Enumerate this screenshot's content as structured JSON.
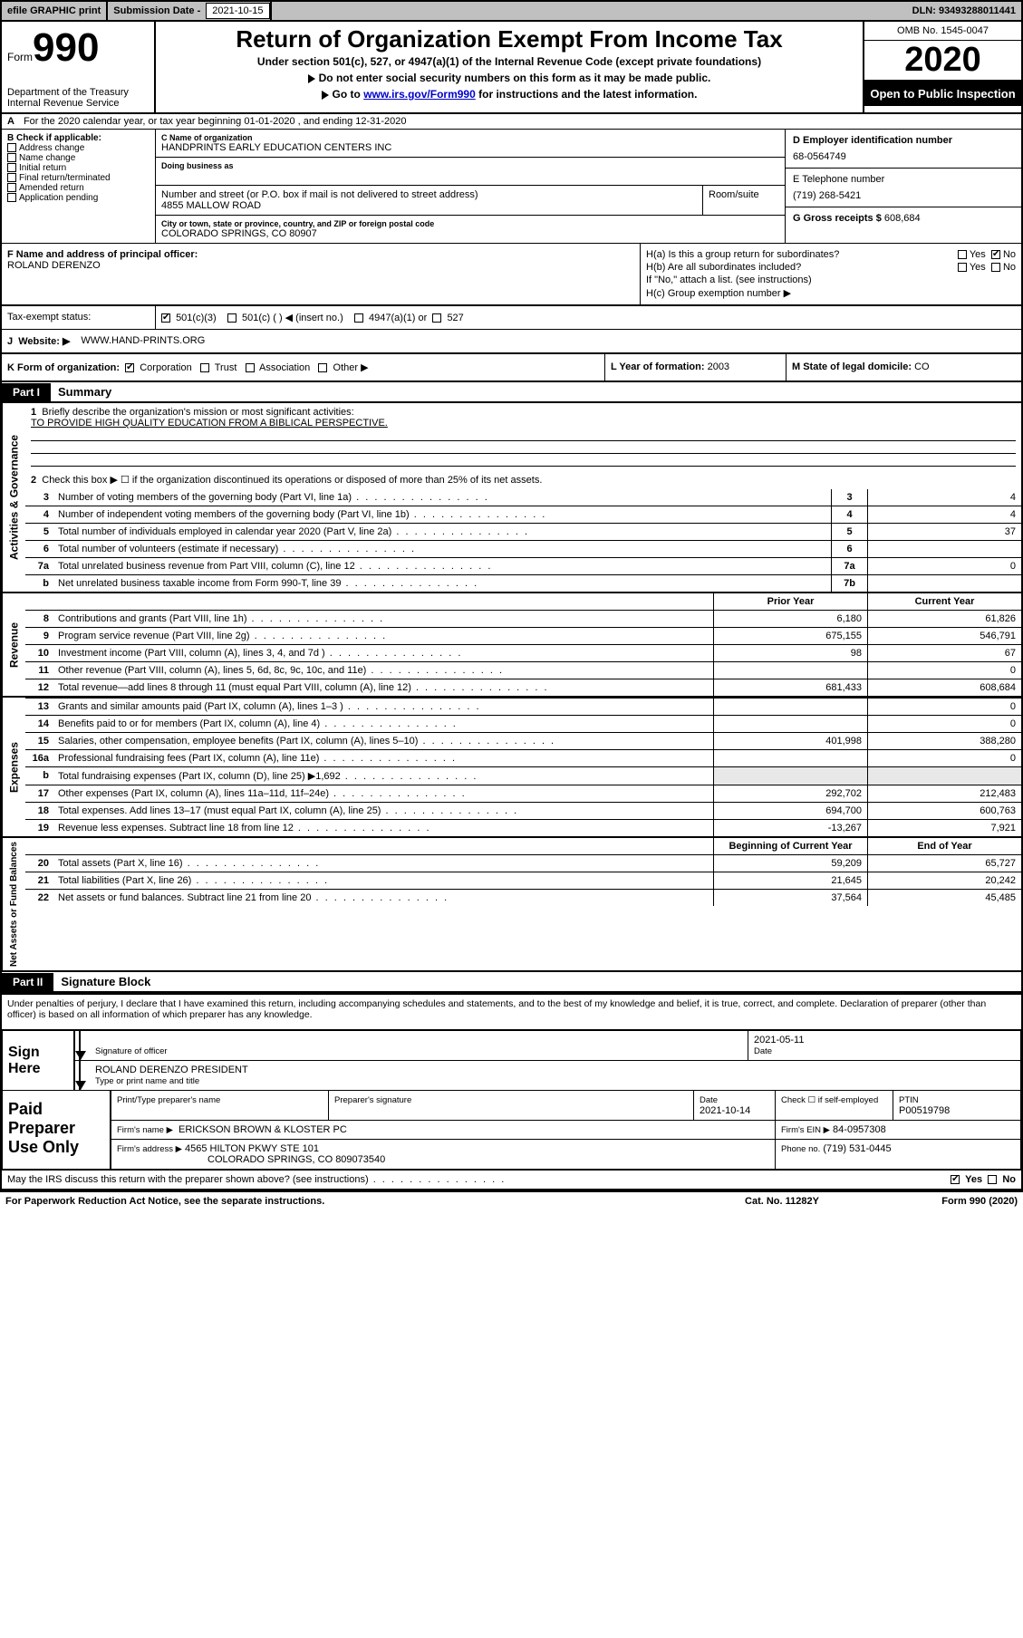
{
  "topbar": {
    "efile": "efile GRAPHIC print",
    "sub_label": "Submission Date -",
    "sub_date": "2021-10-15",
    "dln": "DLN: 93493288011441"
  },
  "header": {
    "form_prefix": "Form",
    "form_number": "990",
    "title": "Return of Organization Exempt From Income Tax",
    "sub1": "Under section 501(c), 527, or 4947(a)(1) of the Internal Revenue Code (except private foundations)",
    "sub2": "Do not enter social security numbers on this form as it may be made public.",
    "sub3_pre": "Go to ",
    "sub3_link": "www.irs.gov/Form990",
    "sub3_post": " for instructions and the latest information.",
    "dept1": "Department of the Treasury",
    "dept2": "Internal Revenue Service",
    "omb": "OMB No. 1545-0047",
    "year": "2020",
    "open_to": "Open to Public Inspection"
  },
  "line_a": "For the 2020 calendar year, or tax year beginning 01-01-2020   , and ending 12-31-2020",
  "box_b": {
    "label": "B Check if applicable:",
    "items": [
      "Address change",
      "Name change",
      "Initial return",
      "Final return/terminated",
      "Amended return",
      "Application pending"
    ]
  },
  "box_c": {
    "name_hint": "C Name of organization",
    "name": "HANDPRINTS EARLY EDUCATION CENTERS INC",
    "dba_hint": "Doing business as",
    "addr_hint": "Number and street (or P.O. box if mail is not delivered to street address)",
    "room_hint": "Room/suite",
    "address": "4855 MALLOW ROAD",
    "city_hint": "City or town, state or province, country, and ZIP or foreign postal code",
    "city": "COLORADO SPRINGS, CO  80907"
  },
  "box_d": {
    "label": "D Employer identification number",
    "value": "68-0564749"
  },
  "box_e": {
    "label": "E Telephone number",
    "value": "(719) 268-5421"
  },
  "box_g": {
    "label": "G Gross receipts $",
    "value": "608,684"
  },
  "box_f": {
    "label": "F  Name and address of principal officer:",
    "name": "ROLAND DERENZO"
  },
  "box_h": {
    "ha": "H(a)  Is this a group return for subordinates?",
    "hb": "H(b)  Are all subordinates included?",
    "hb_note": "If \"No,\" attach a list. (see instructions)",
    "hc": "H(c)  Group exemption number ▶",
    "yes": "Yes",
    "no": "No"
  },
  "tax_status": {
    "label": "Tax-exempt status:",
    "o1": "501(c)(3)",
    "o2": "501(c) (  ) ◀ (insert no.)",
    "o3": "4947(a)(1) or",
    "o4": "527"
  },
  "row_j": {
    "label": "J",
    "website_label": "Website: ▶",
    "website": "WWW.HAND-PRINTS.ORG"
  },
  "row_k": {
    "label": "K Form of organization:",
    "opts": [
      "Corporation",
      "Trust",
      "Association",
      "Other ▶"
    ],
    "l_label": "L Year of formation:",
    "l_val": "2003",
    "m_label": "M State of legal domicile:",
    "m_val": "CO"
  },
  "part1": {
    "tag": "Part I",
    "title": "Summary"
  },
  "gov": {
    "vlabel": "Activities & Governance",
    "q1_num": "1",
    "q1": "Briefly describe the organization's mission or most significant activities:",
    "q1_text": "TO PROVIDE HIGH QUALITY EDUCATION FROM A BIBLICAL PERSPECTIVE.",
    "q2_num": "2",
    "q2": "Check this box ▶ ☐  if the organization discontinued its operations or disposed of more than 25% of its net assets.",
    "lines": [
      {
        "n": "3",
        "t": "Number of voting members of the governing body (Part VI, line 1a)",
        "box": "3",
        "v": "4"
      },
      {
        "n": "4",
        "t": "Number of independent voting members of the governing body (Part VI, line 1b)",
        "box": "4",
        "v": "4"
      },
      {
        "n": "5",
        "t": "Total number of individuals employed in calendar year 2020 (Part V, line 2a)",
        "box": "5",
        "v": "37"
      },
      {
        "n": "6",
        "t": "Total number of volunteers (estimate if necessary)",
        "box": "6",
        "v": ""
      },
      {
        "n": "7a",
        "t": "Total unrelated business revenue from Part VIII, column (C), line 12",
        "box": "7a",
        "v": "0"
      },
      {
        "n": "b",
        "t": "Net unrelated business taxable income from Form 990-T, line 39",
        "box": "7b",
        "v": ""
      }
    ]
  },
  "rev": {
    "vlabel": "Revenue",
    "hdr_prior": "Prior Year",
    "hdr_curr": "Current Year",
    "lines": [
      {
        "n": "8",
        "t": "Contributions and grants (Part VIII, line 1h)",
        "p": "6,180",
        "c": "61,826"
      },
      {
        "n": "9",
        "t": "Program service revenue (Part VIII, line 2g)",
        "p": "675,155",
        "c": "546,791"
      },
      {
        "n": "10",
        "t": "Investment income (Part VIII, column (A), lines 3, 4, and 7d )",
        "p": "98",
        "c": "67"
      },
      {
        "n": "11",
        "t": "Other revenue (Part VIII, column (A), lines 5, 6d, 8c, 9c, 10c, and 11e)",
        "p": "",
        "c": "0"
      },
      {
        "n": "12",
        "t": "Total revenue—add lines 8 through 11 (must equal Part VIII, column (A), line 12)",
        "p": "681,433",
        "c": "608,684"
      }
    ]
  },
  "exp": {
    "vlabel": "Expenses",
    "lines": [
      {
        "n": "13",
        "t": "Grants and similar amounts paid (Part IX, column (A), lines 1–3 )",
        "p": "",
        "c": "0"
      },
      {
        "n": "14",
        "t": "Benefits paid to or for members (Part IX, column (A), line 4)",
        "p": "",
        "c": "0"
      },
      {
        "n": "15",
        "t": "Salaries, other compensation, employee benefits (Part IX, column (A), lines 5–10)",
        "p": "401,998",
        "c": "388,280"
      },
      {
        "n": "16a",
        "t": "Professional fundraising fees (Part IX, column (A), line 11e)",
        "p": "",
        "c": "0"
      },
      {
        "n": "b",
        "t": "Total fundraising expenses (Part IX, column (D), line 25) ▶1,692",
        "p": "GREY",
        "c": "GREY"
      },
      {
        "n": "17",
        "t": "Other expenses (Part IX, column (A), lines 11a–11d, 11f–24e)",
        "p": "292,702",
        "c": "212,483"
      },
      {
        "n": "18",
        "t": "Total expenses. Add lines 13–17 (must equal Part IX, column (A), line 25)",
        "p": "694,700",
        "c": "600,763"
      },
      {
        "n": "19",
        "t": "Revenue less expenses. Subtract line 18 from line 12",
        "p": "-13,267",
        "c": "7,921"
      }
    ]
  },
  "net": {
    "vlabel": "Net Assets or Fund Balances",
    "hdr_prior": "Beginning of Current Year",
    "hdr_curr": "End of Year",
    "lines": [
      {
        "n": "20",
        "t": "Total assets (Part X, line 16)",
        "p": "59,209",
        "c": "65,727"
      },
      {
        "n": "21",
        "t": "Total liabilities (Part X, line 26)",
        "p": "21,645",
        "c": "20,242"
      },
      {
        "n": "22",
        "t": "Net assets or fund balances. Subtract line 21 from line 20",
        "p": "37,564",
        "c": "45,485"
      }
    ]
  },
  "part2": {
    "tag": "Part II",
    "title": "Signature Block"
  },
  "sig": {
    "decl": "Under penalties of perjury, I declare that I have examined this return, including accompanying schedules and statements, and to the best of my knowledge and belief, it is true, correct, and complete. Declaration of preparer (other than officer) is based on all information of which preparer has any knowledge.",
    "sign_here": "Sign Here",
    "sig_of_officer": "Signature of officer",
    "date_lbl": "Date",
    "date_val": "2021-05-11",
    "officer": "ROLAND DERENZO  PRESIDENT",
    "type_hint": "Type or print name and title"
  },
  "paid": {
    "label": "Paid Preparer Use Only",
    "h1": "Print/Type preparer's name",
    "h2": "Preparer's signature",
    "h3": "Date",
    "h3v": "2021-10-14",
    "h4": "Check ☐  if self-employed",
    "h5": "PTIN",
    "h5v": "P00519798",
    "firm_lbl": "Firm's name   ▶",
    "firm": "ERICKSON BROWN & KLOSTER PC",
    "ein_lbl": "Firm's EIN ▶",
    "ein": "84-0957308",
    "addr_lbl": "Firm's address ▶",
    "addr1": "4565 HILTON PKWY STE 101",
    "addr2": "COLORADO SPRINGS, CO  809073540",
    "phone_lbl": "Phone no.",
    "phone": "(719) 531-0445"
  },
  "footer": {
    "q": "May the IRS discuss this return with the preparer shown above? (see instructions)",
    "yes": "Yes",
    "no": "No",
    "pra": "For Paperwork Reduction Act Notice, see the separate instructions.",
    "cat": "Cat. No. 11282Y",
    "form": "Form 990 (2020)"
  }
}
